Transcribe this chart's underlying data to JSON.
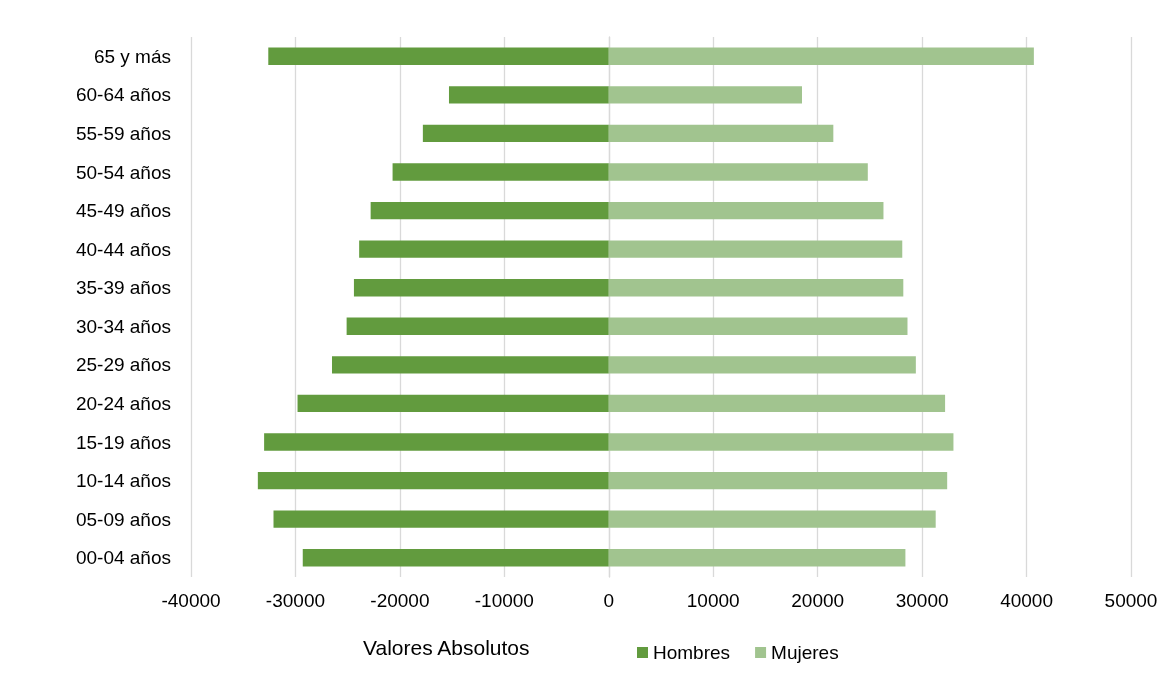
{
  "chart_data": {
    "type": "bar",
    "orientation": "horizontal",
    "xlabel": "Valores Absolutos",
    "categories": [
      "65 y más",
      "60-64 años",
      "55-59 años",
      "50-54 años",
      "45-49 años",
      "40-44 años",
      "35-39 años",
      "30-34 años",
      "25-29 años",
      "20-24 años",
      "15-19 años",
      "10-14 años",
      "05-09 años",
      "00-04 años"
    ],
    "series": [
      {
        "name": "Hombres",
        "color": "#629b3e",
        "values": [
          -32600,
          -15300,
          -17800,
          -20700,
          -22800,
          -23900,
          -24400,
          -25100,
          -26500,
          -29800,
          -33000,
          -33600,
          -32100,
          -29300
        ]
      },
      {
        "name": "Mujeres",
        "color": "#a1c48f",
        "values": [
          40700,
          18500,
          21500,
          24800,
          26300,
          28100,
          28200,
          28600,
          29400,
          32200,
          33000,
          32400,
          31300,
          28400
        ]
      }
    ],
    "xlim": [
      -40000,
      50000
    ],
    "xticks": [
      -40000,
      -30000,
      -20000,
      -10000,
      0,
      10000,
      20000,
      30000,
      40000,
      50000
    ],
    "grid": "x",
    "legend": "bottom",
    "stacked": true
  }
}
